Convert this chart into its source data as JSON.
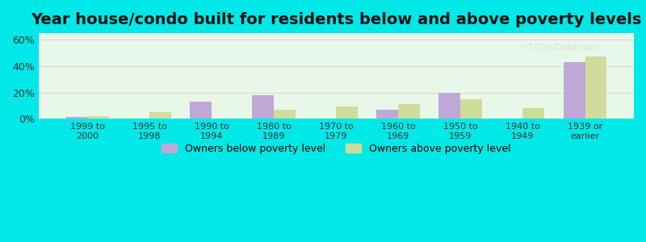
{
  "title": "Year house/condo built for residents below and above poverty levels",
  "categories": [
    "1999 to\n2000",
    "1995 to\n1998",
    "1990 to\n1994",
    "1980 to\n1989",
    "1970 to\n1979",
    "1960 to\n1969",
    "1950 to\n1959",
    "1940 to\n1949",
    "1939 or\nearlier"
  ],
  "below_poverty": [
    1.0,
    0.0,
    13.0,
    18.0,
    0.0,
    7.0,
    19.5,
    0.0,
    43.0
  ],
  "above_poverty": [
    2.0,
    5.0,
    0.0,
    7.0,
    9.0,
    11.0,
    15.0,
    8.0,
    47.0
  ],
  "below_color": "#c0a8d8",
  "above_color": "#d0dc9a",
  "ylim": [
    0,
    65
  ],
  "yticks": [
    0,
    20,
    40,
    60
  ],
  "ytick_labels": [
    "0%",
    "20%",
    "40%",
    "60%"
  ],
  "bg_color_top": "#e8f8e8",
  "bg_color_bottom": "#f8fff8",
  "outer_bg": "#00e8e8",
  "legend_below": "Owners below poverty level",
  "legend_above": "Owners above poverty level",
  "title_fontsize": 14,
  "bar_width": 0.35
}
